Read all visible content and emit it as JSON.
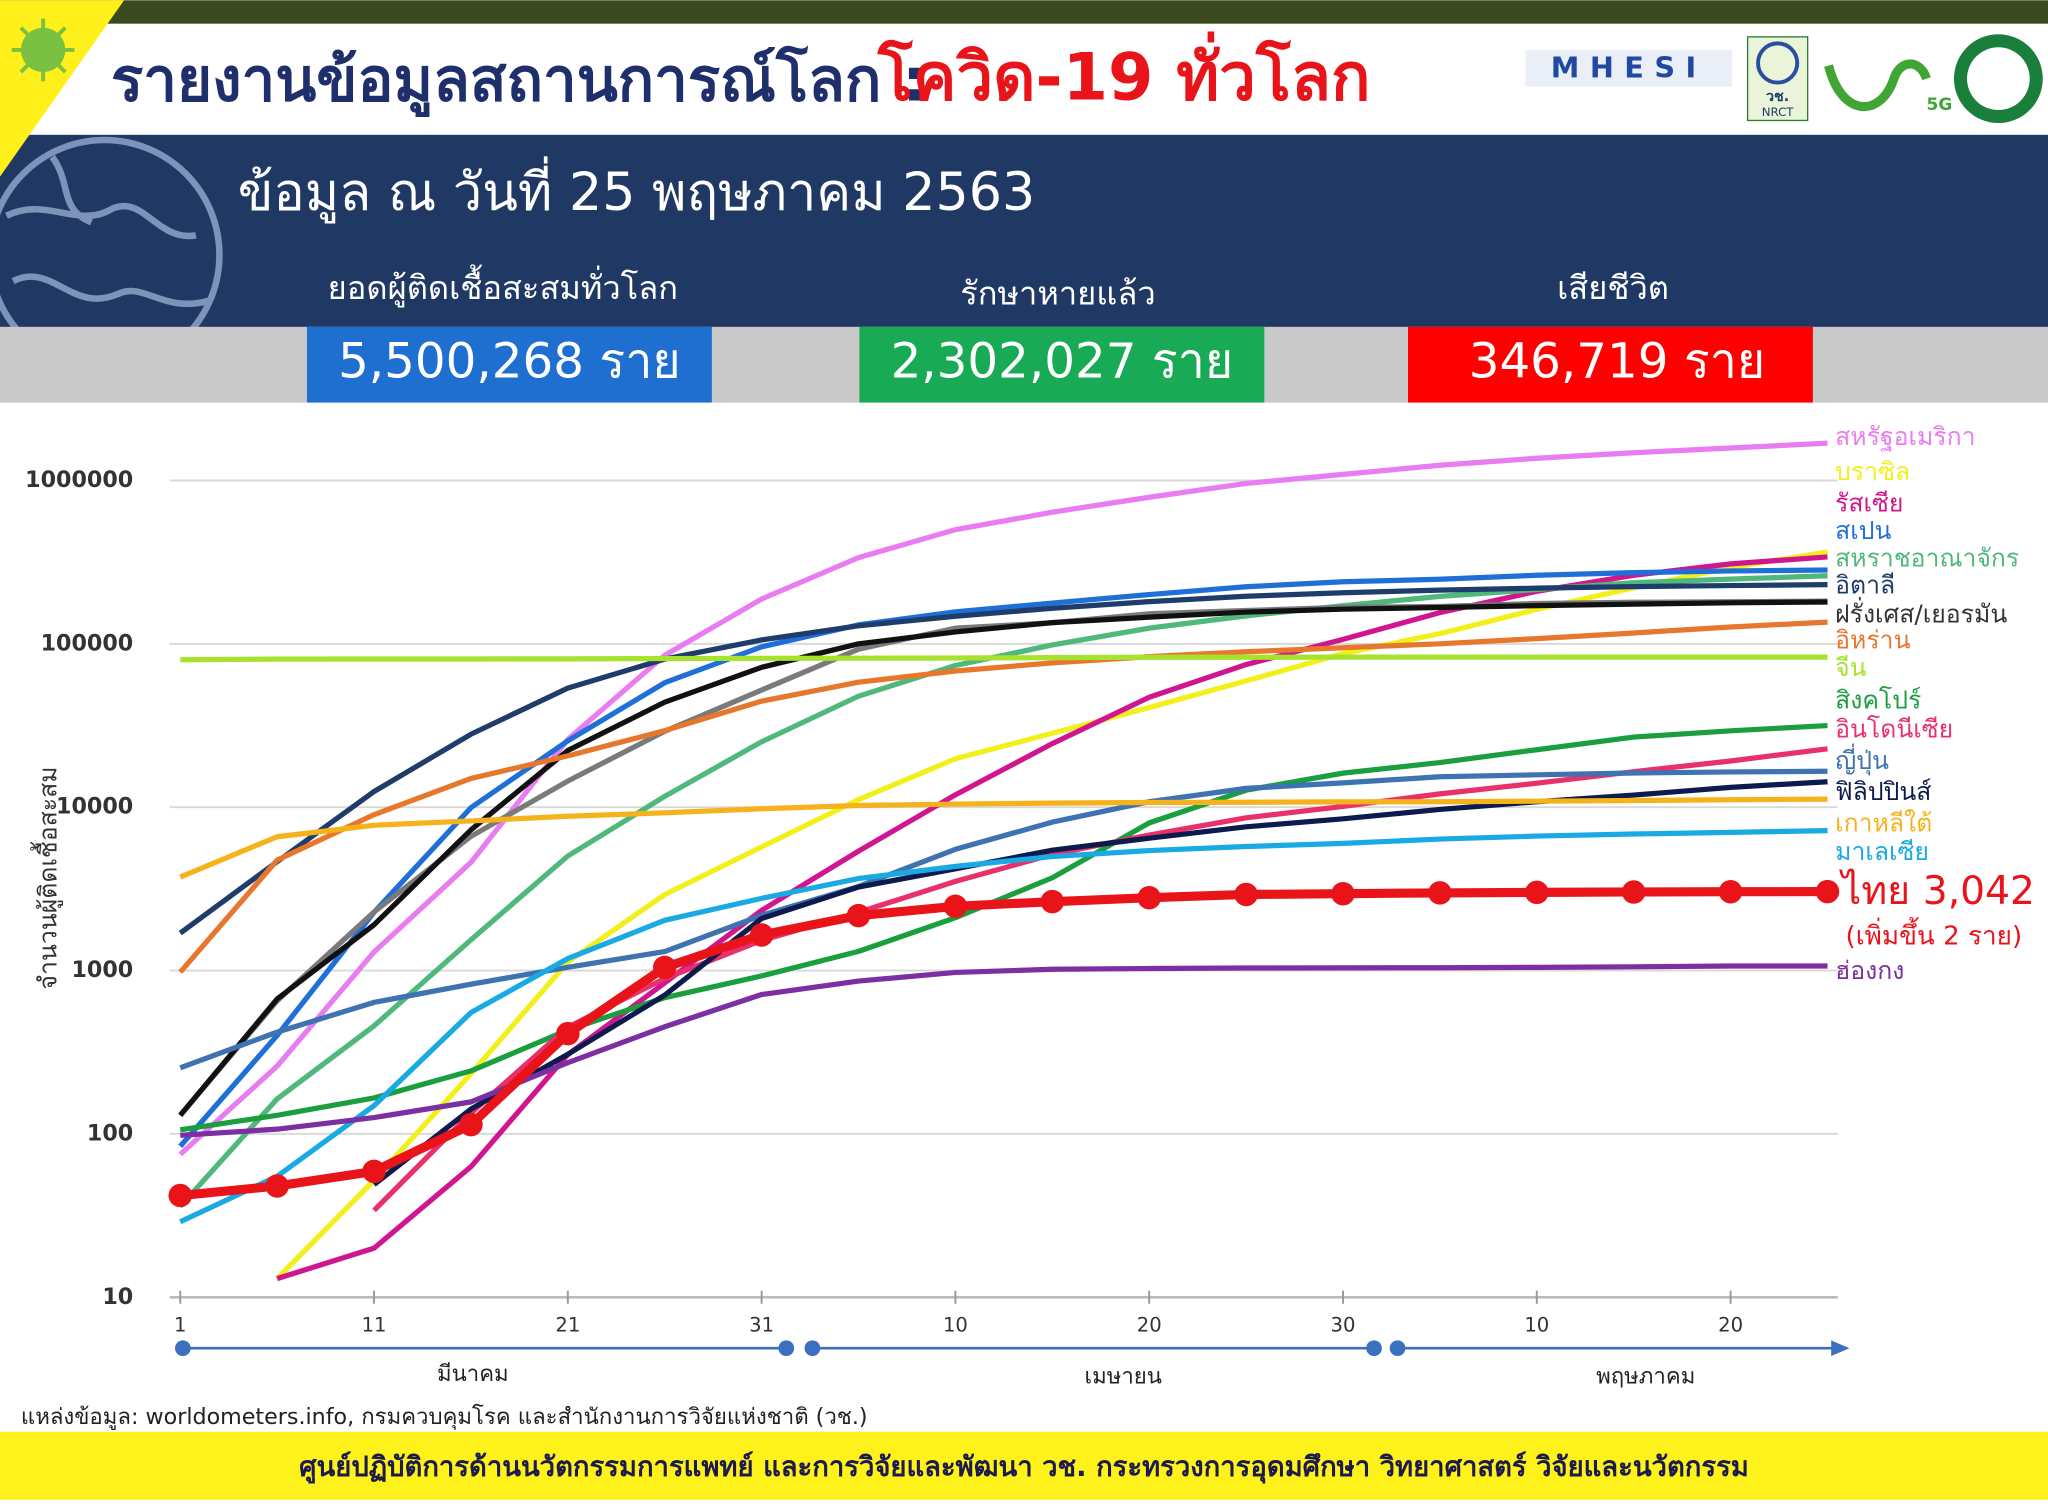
{
  "header": {
    "title_main": "รายงานข้อมูลสถานการณ์โลก :",
    "title_highlight": "โควิด-19 ทั่วโลก",
    "date": "ข้อมูล ณ วันที่ 25 พฤษภาคม 2563",
    "logos": [
      "MHESI",
      "วช.",
      "NRCT",
      "5G"
    ]
  },
  "stats": [
    {
      "label": "ยอดผู้ติดเชื้อสะสมทั่วโลก",
      "value": "5,500,268 ราย"
    },
    {
      "label": "รักษาหายแล้ว",
      "value": "2,302,027 ราย"
    },
    {
      "label": "เสียชีวิต",
      "value": "346,719 ราย"
    }
  ],
  "source": "แหล่งข้อมูล: worldometers.info, กรมควบคุมโรค และสำนักงานการวิจัยแห่งชาติ (วช.)",
  "footer": "ศูนย์ปฏิบัติการด้านนวัตกรรมการแพทย์ และการวิจัยและพัฒนา  วช.   กระทรวงการอุดมศึกษา วิทยาศาสตร์ วิจัยและนวัตกรรม",
  "chart_data": {
    "type": "line",
    "y_label": "จำนวนผู้ติดเชื้อสะสม",
    "log_scale": true,
    "grid": true,
    "x": [
      1,
      6,
      11,
      16,
      21,
      26,
      31,
      36,
      41,
      46,
      51,
      56,
      61,
      66,
      71,
      76,
      81,
      86
    ],
    "xlim": [
      1,
      87
    ],
    "xticks": [
      1,
      11,
      21,
      31,
      {
        "value": 41,
        "label": "10"
      },
      {
        "value": 51,
        "label": "20"
      },
      {
        "value": 61,
        "label": "30"
      },
      {
        "value": 71,
        "label": "10"
      },
      {
        "value": 81,
        "label": "20"
      }
    ],
    "months": [
      "มีนาคม",
      "เมษายน",
      "พฤษภาคม"
    ],
    "ylim": [
      10,
      2000000
    ],
    "yticks": [
      10,
      100,
      1000,
      10000,
      100000,
      1000000
    ],
    "annotation": "(เพิ่มขึ้น 2 ราย)",
    "series": [
      {
        "name": "สหรัฐอเมริกา",
        "color": "#e87cf0",
        "values": [
          75,
          260,
          1300,
          4600,
          26000,
          85000,
          188000,
          337000,
          500000,
          640000,
          790000,
          960000,
          1090000,
          1240000,
          1370000,
          1480000,
          1580000,
          1690000
        ]
      },
      {
        "name": "บราซิล",
        "color": "#f2ef1a",
        "values": [
          null,
          13,
          52,
          234,
          1128,
          2915,
          5717,
          11130,
          19789,
          28320,
          40743,
          59324,
          87187,
          115455,
          162699,
          220291,
          293357,
          365000
        ]
      },
      {
        "name": "รัสเซีย",
        "color": "#d0168f",
        "values": [
          null,
          13,
          20,
          63,
          306,
          840,
          2337,
          5389,
          11917,
          24490,
          47121,
          74588,
          106498,
          155370,
          209688,
          262843,
          308705,
          340000
        ]
      },
      {
        "name": "สเปน",
        "color": "#1f6fd8",
        "values": [
          84,
          401,
          2277,
          9942,
          25496,
          57786,
          95923,
          130759,
          157022,
          177633,
          200210,
          223759,
          239639,
          248301,
          262783,
          272646,
          279524,
          282852
        ]
      },
      {
        "name": "สหราชอาณาจักร",
        "color": "#4fb87a",
        "values": [
          36,
          164,
          459,
          1543,
          5018,
          11658,
          25150,
          47806,
          73758,
          98476,
          124743,
          148377,
          171253,
          194990,
          215260,
          236711,
          248818,
          261184
        ]
      },
      {
        "name": "อิตาลี",
        "color": "#1f3d6b",
        "values": [
          1694,
          4636,
          12462,
          27980,
          53578,
          80589,
          105792,
          128948,
          147577,
          165155,
          181228,
          195351,
          205463,
          213013,
          219070,
          223885,
          227364,
          230158
        ]
      },
      {
        "name": "ฝรั่งเศส/เยอรมัน",
        "color": "#7a7a7a",
        "values": [
          130,
          653,
          2284,
          6633,
          14459,
          29155,
          52128,
          92839,
          124869,
          134582,
          152894,
          159828,
          167178,
          169462,
          176658,
          179569,
          180933,
          182584
        ]
      },
      {
        "color": "#111111",
        "values": [
          130,
          670,
          1908,
          7272,
          22213,
          43938,
          71808,
          100123,
          118181,
          134753,
          145742,
          156513,
          163009,
          167007,
          171324,
          174975,
          178473,
          180328
        ]
      },
      {
        "name": "อิหร่าน",
        "color": "#e8772e",
        "values": [
          978,
          4747,
          9000,
          14991,
          20610,
          29406,
          44605,
          58226,
          68192,
          76389,
          83505,
          89328,
          94640,
          99970,
          107603,
          116635,
          126949,
          135701
        ]
      },
      {
        "name": "จีน",
        "color": "#a6e22e",
        "values": [
          79968,
          80651,
          80793,
          80860,
          81008,
          81285,
          81554,
          81708,
          81907,
          82295,
          82747,
          82816,
          82862,
          82881,
          82901,
          82933,
          82965,
          82985
        ]
      },
      {
        "name": "สิงคโปร์",
        "color": "#1a9e3e",
        "values": [
          106,
          130,
          166,
          243,
          432,
          683,
          926,
          1309,
          2108,
          3699,
          8014,
          12693,
          16169,
          18778,
          22460,
          26891,
          29364,
          31616
        ]
      },
      {
        "name": "อินโดนีเซีย",
        "color": "#e8306b",
        "values": [
          null,
          null,
          34,
          134,
          450,
          893,
          1528,
          2273,
          3512,
          5136,
          6760,
          8607,
          10118,
          12071,
          14032,
          16496,
          19189,
          22750
        ]
      },
      {
        "name": "ญี่ปุ่น",
        "color": "#3f72b0",
        "values": [
          254,
          420,
          639,
          825,
          1046,
          1307,
          2178,
          3271,
          5530,
          8100,
          10797,
          13031,
          14088,
          15354,
          15798,
          16203,
          16424,
          16581
        ]
      },
      {
        "name": "ฟิลิปปินส์",
        "color": "#0d1a4e",
        "values": [
          null,
          null,
          49,
          142,
          307,
          707,
          2084,
          3246,
          4195,
          5453,
          6459,
          7579,
          8488,
          9684,
          10794,
          11876,
          13221,
          14319
        ]
      },
      {
        "name": "เกาหลีใต้",
        "color": "#f6b21b",
        "values": [
          3736,
          6593,
          7755,
          8236,
          8799,
          9241,
          9786,
          10237,
          10450,
          10591,
          10674,
          10728,
          10774,
          10806,
          10874,
          10991,
          11110,
          11206
        ]
      },
      {
        "name": "มาเลเซีย",
        "color": "#19a9e3",
        "values": [
          29,
          55,
          149,
          553,
          1183,
          2031,
          2766,
          3662,
          4346,
          4987,
          5425,
          5742,
          6002,
          6383,
          6656,
          6855,
          7009,
          7185
        ]
      },
      {
        "name": "ไทย",
        "color": "#e8141a",
        "markers": true,
        "values": [
          42,
          48,
          59,
          114,
          411,
          1045,
          1651,
          2169,
          2473,
          2643,
          2792,
          2922,
          2954,
          2988,
          3009,
          3025,
          3037,
          3042
        ],
        "value_labels": [
          null,
          null,
          null,
          null,
          null,
          null,
          null,
          null,
          null,
          null,
          null,
          null,
          null,
          null,
          null,
          null,
          null,
          "3,042"
        ]
      },
      {
        "name": "ฮ่องกง",
        "color": "#7b2fa3",
        "values": [
          98,
          107,
          126,
          157,
          273,
          453,
          714,
          862,
          974,
          1017,
          1029,
          1037,
          1039,
          1040,
          1047,
          1055,
          1065,
          1066
        ]
      }
    ]
  }
}
